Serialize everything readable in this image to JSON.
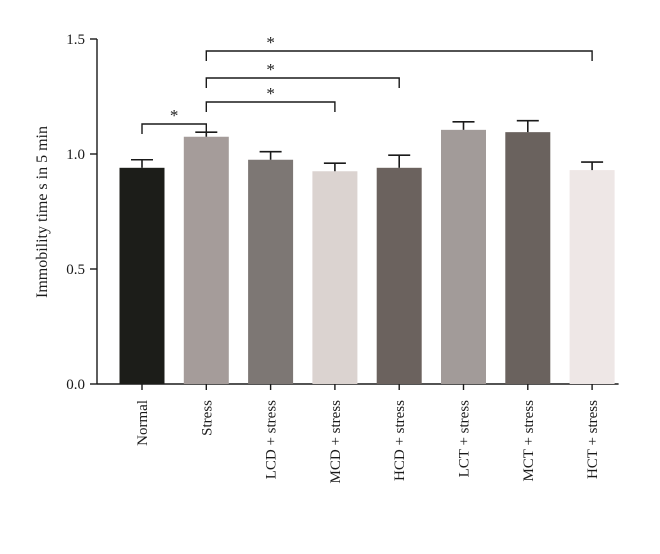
{
  "chart_data": {
    "type": "bar",
    "ylabel": "Immobility time s in 5 min",
    "xlabel": "",
    "ylim": [
      0,
      1.5
    ],
    "yticks": [
      "0.0",
      "0.5",
      "1.0",
      "1.5"
    ],
    "grid": false,
    "categories": [
      "Normal",
      "Stress",
      "LCD + stress",
      "MCD + stress",
      "HCD + stress",
      "LCT + stress",
      "MCT + stress",
      "HCT + stress"
    ],
    "values": [
      0.94,
      1.075,
      0.975,
      0.925,
      0.94,
      1.105,
      1.095,
      0.93
    ],
    "errors": [
      0.035,
      0.02,
      0.035,
      0.035,
      0.055,
      0.035,
      0.05,
      0.035
    ],
    "colors": [
      "#1c1d19",
      "#a59c9a",
      "#7d7774",
      "#dbd3d0",
      "#6b625e",
      "#a29b99",
      "#6a625e",
      "#eee7e6"
    ],
    "significance": [
      {
        "from": 0,
        "to": 1,
        "label": "*"
      },
      {
        "from": 1,
        "to": 3,
        "label": "*"
      },
      {
        "from": 1,
        "to": 4,
        "label": "*"
      },
      {
        "from": 1,
        "to": 7,
        "label": "*"
      }
    ]
  }
}
